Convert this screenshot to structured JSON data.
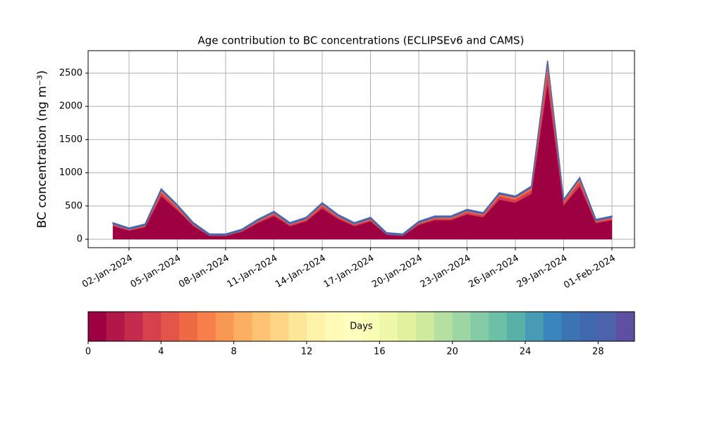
{
  "chart_data": {
    "type": "stacked_area",
    "title": "Age contribution to BC concentrations (ECLIPSEv6 and CAMS)",
    "y_label": "BC concentration (ng m⁻³)",
    "x": [
      "01-Jan-2024",
      "02-Jan-2024",
      "03-Jan-2024",
      "04-Jan-2024",
      "05-Jan-2024",
      "06-Jan-2024",
      "07-Jan-2024",
      "08-Jan-2024",
      "09-Jan-2024",
      "10-Jan-2024",
      "11-Jan-2024",
      "12-Jan-2024",
      "13-Jan-2024",
      "14-Jan-2024",
      "15-Jan-2024",
      "16-Jan-2024",
      "17-Jan-2024",
      "18-Jan-2024",
      "19-Jan-2024",
      "20-Jan-2024",
      "21-Jan-2024",
      "22-Jan-2024",
      "23-Jan-2024",
      "24-Jan-2024",
      "25-Jan-2024",
      "26-Jan-2024",
      "27-Jan-2024",
      "28-Jan-2024",
      "29-Jan-2024",
      "30-Jan-2024",
      "31-Jan-2024",
      "01-Feb-2024"
    ],
    "series": [
      {
        "color": "#9e0142",
        "values": [
          199,
          129,
          182,
          649,
          438,
          199,
          50,
          50,
          111,
          244,
          350,
          199,
          270,
          463,
          305,
          199,
          270,
          68,
          50,
          217,
          287,
          287,
          375,
          332,
          596,
          551,
          684,
          2347,
          508,
          798,
          244,
          287
        ]
      },
      {
        "color": "#d53e4f",
        "values": [
          18,
          12,
          16,
          53,
          36,
          18,
          6,
          6,
          11,
          21,
          29,
          18,
          23,
          39,
          26,
          18,
          23,
          7,
          6,
          19,
          25,
          25,
          32,
          28,
          49,
          46,
          56,
          188,
          42,
          65,
          21,
          25
        ]
      },
      {
        "color": "#f46d43",
        "values": [
          13,
          9,
          12,
          38,
          26,
          13,
          4,
          4,
          8,
          15,
          21,
          13,
          17,
          28,
          19,
          13,
          17,
          5,
          4,
          14,
          18,
          18,
          23,
          20,
          35,
          33,
          40,
          135,
          30,
          47,
          15,
          18
        ]
      },
      {
        "color": "#4a67ad",
        "values": [
          20,
          20,
          20,
          20,
          20,
          20,
          20,
          20,
          20,
          20,
          20,
          20,
          20,
          20,
          20,
          20,
          20,
          20,
          20,
          20,
          20,
          20,
          20,
          20,
          20,
          20,
          20,
          20,
          20,
          20,
          20,
          20
        ]
      }
    ],
    "ylim": [
      -127,
      2839
    ],
    "yticks": [
      0,
      500,
      1000,
      1500,
      2000,
      2500
    ],
    "grid": true,
    "xticks": [
      "02-Jan-2024",
      "05-Jan-2024",
      "08-Jan-2024",
      "11-Jan-2024",
      "14-Jan-2024",
      "17-Jan-2024",
      "20-Jan-2024",
      "23-Jan-2024",
      "26-Jan-2024",
      "29-Jan-2024",
      "01-Feb-2024"
    ],
    "colorbar": {
      "label": "Days",
      "lim": [
        0,
        30
      ],
      "ticks": [
        0,
        4,
        8,
        12,
        16,
        20,
        24,
        28
      ],
      "colors": [
        "#9e0142",
        "#b2174a",
        "#c42c4d",
        "#d7414e",
        "#e35549",
        "#ee6a45",
        "#f67f4b",
        "#f99755",
        "#fcaf62",
        "#fdc372",
        "#fed585",
        "#fee698",
        "#fff3aa",
        "#fffab8",
        "#ffffbf",
        "#f8fcb4",
        "#eef8a8",
        "#e0f29d",
        "#cdea9d",
        "#b5e0a2",
        "#9dd5a4",
        "#84cba5",
        "#6bc0a5",
        "#58b0a8",
        "#479bb2",
        "#3a85bb",
        "#3b73b3",
        "#4068af",
        "#4c62ab",
        "#5e4fa2"
      ]
    }
  }
}
